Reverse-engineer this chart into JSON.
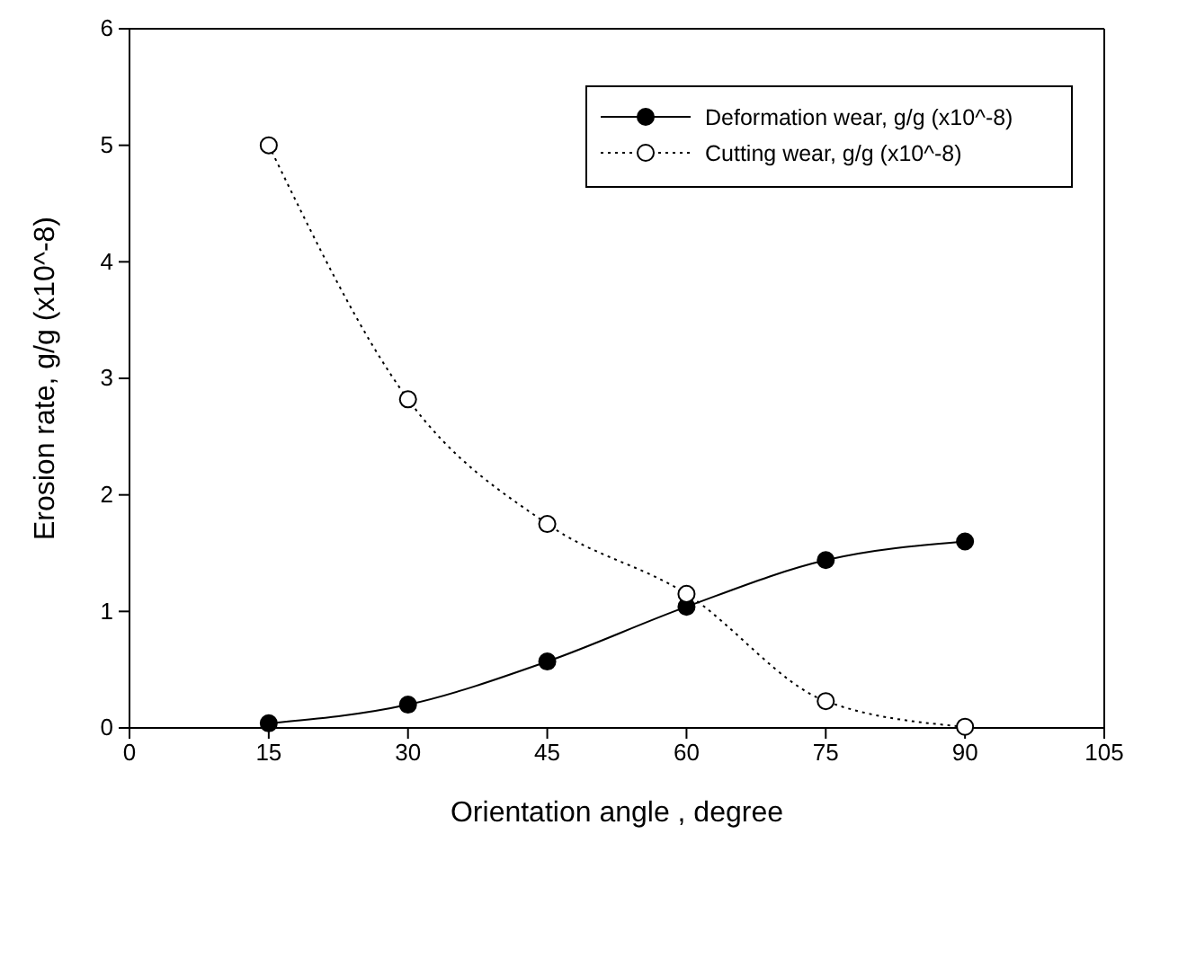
{
  "chart_data": {
    "type": "line",
    "xlabel": "Orientation angle , degree",
    "ylabel": "Erosion rate, g/g (x10^-8)",
    "x": [
      15,
      30,
      45,
      60,
      75,
      90
    ],
    "series": [
      {
        "name": "Deformation wear, g/g (x10^-8)",
        "color": "#000000",
        "line_style": "solid",
        "values": [
          0.04,
          0.2,
          0.57,
          1.04,
          1.44,
          1.6
        ]
      },
      {
        "name": "Cutting wear, g/g (x10^-8)",
        "color": "#000000",
        "line_style": "dotted",
        "values": [
          5.0,
          2.82,
          1.75,
          1.15,
          0.23,
          0.01
        ]
      }
    ],
    "xlim": [
      0,
      105
    ],
    "xticks": [
      0,
      15,
      30,
      45,
      60,
      75,
      90,
      105
    ],
    "ylim": [
      0,
      6
    ],
    "yticks": [
      0,
      1,
      2,
      3,
      4,
      5,
      6
    ],
    "grid": false,
    "legend": "top right",
    "marker": "circle"
  }
}
